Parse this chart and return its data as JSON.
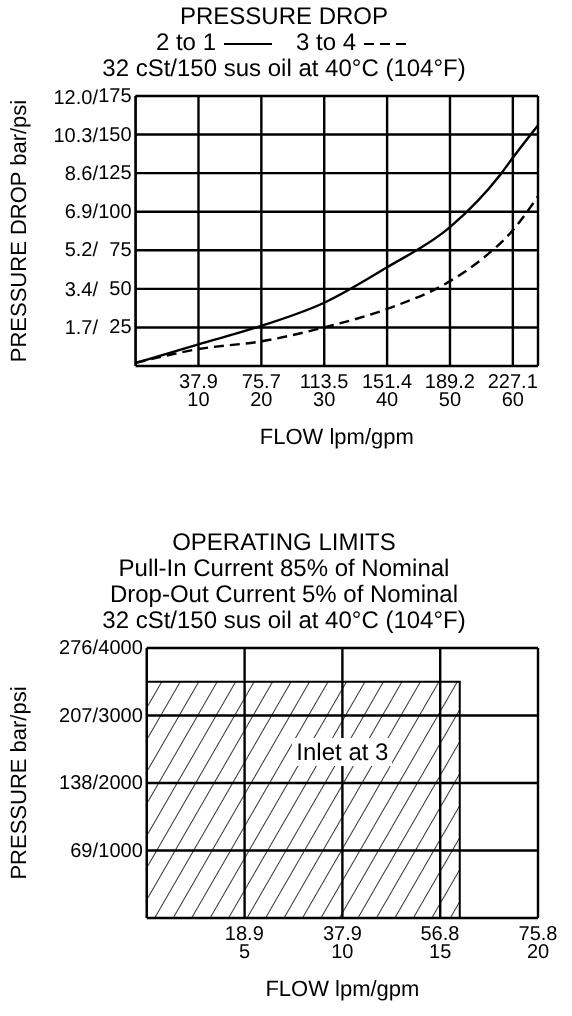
{
  "chart_data": [
    {
      "type": "line",
      "title": "PRESSURE DROP",
      "subtitle": "32 cSt/150 sus oil at 40°C (104°F)",
      "xlabel": "FLOW lpm/gpm",
      "ylabel": "PRESSURE DROP bar/psi",
      "legend": "top",
      "grid": true,
      "marker": "none",
      "xlim": [
        0,
        64
      ],
      "xticks": [
        10,
        20,
        30,
        40,
        50,
        60
      ],
      "x2lim": [
        0,
        242.3
      ],
      "x2ticks": [
        37.9,
        75.7,
        113.5,
        151.4,
        189.2,
        227.1
      ],
      "y2lim": [
        0,
        175
      ],
      "y2ticks": [
        25,
        50,
        75,
        100,
        125,
        150,
        175
      ],
      "ylim": [
        0,
        12.07
      ],
      "yticks": [
        {
          "value": 1.7,
          "label": "1.7/"
        },
        {
          "value": 3.4,
          "label": "3.4/"
        },
        {
          "value": 5.2,
          "label": "5.2/"
        },
        {
          "value": 6.9,
          "label": "6.9/"
        },
        {
          "value": 8.6,
          "label": "8.6/"
        },
        {
          "value": 10.3,
          "label": "10.3/"
        },
        {
          "value": 12.0,
          "label": "12.0/"
        }
      ],
      "series": [
        {
          "name": "2 to 1",
          "color": "#000000",
          "axis": "y2",
          "line_style": "solid",
          "x": [
            0,
            10,
            20,
            30,
            40,
            50,
            58,
            60,
            64
          ],
          "values": [
            2,
            14,
            26,
            41,
            64,
            90,
            124,
            135,
            156
          ]
        },
        {
          "name": "3 to 4",
          "color": "#000000",
          "axis": "y2",
          "line_style": "dashed",
          "x": [
            0,
            10,
            20,
            30,
            40,
            50,
            55,
            60,
            64
          ],
          "values": [
            2,
            11,
            16,
            25,
            37,
            55,
            69,
            88,
            110
          ]
        }
      ]
    },
    {
      "type": "area",
      "title": "OPERATING LIMITS",
      "subtitle": "Pull-In Current 85% of Nominal\nDrop-Out Current 5% of Nominal\n32 cSt/150 sus oil at 40°C (104°F)",
      "xlabel": "FLOW lpm/gpm",
      "ylabel": "PRESSURE bar/psi",
      "grid": true,
      "xlim": [
        0,
        20
      ],
      "xticks": [
        5,
        10,
        15,
        20
      ],
      "x2lim": [
        0,
        75.8
      ],
      "x2ticks": [
        18.9,
        37.9,
        56.8,
        75.8
      ],
      "y2lim": [
        0,
        4000
      ],
      "y2ticks": [
        1000,
        2000,
        3000,
        4000
      ],
      "ylim": [
        0,
        276
      ],
      "yticks": [
        {
          "value": 69,
          "label": "69/"
        },
        {
          "value": 138,
          "label": "138/"
        },
        {
          "value": 207,
          "label": "207/"
        },
        {
          "value": 276,
          "label": "276/"
        }
      ],
      "annotations": [
        "Inlet at 3"
      ],
      "series": [
        {
          "color": "#000000",
          "axis": "y2",
          "x": [
            0,
            16,
            16
          ],
          "values": [
            3500,
            3500,
            0
          ]
        }
      ]
    }
  ]
}
